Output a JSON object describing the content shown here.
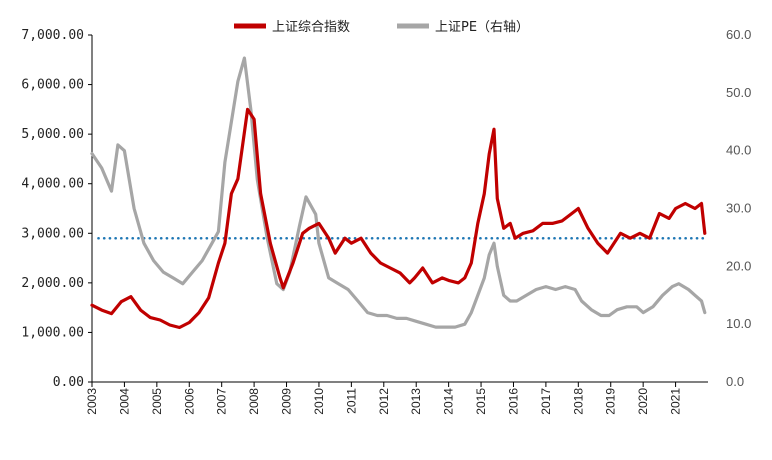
{
  "chart_data": {
    "type": "line",
    "legend_position": "top-center",
    "grid": false,
    "x_range": [
      2003,
      2022.0
    ],
    "x_ticks": [
      "2003",
      "2004",
      "2005",
      "2006",
      "2007",
      "2008",
      "2009",
      "2010",
      "2011",
      "2012",
      "2013",
      "2014",
      "2015",
      "2016",
      "2017",
      "2018",
      "2019",
      "2020",
      "2021"
    ],
    "y_left": {
      "range": [
        0,
        7000
      ],
      "ticks": [
        "0.00",
        "1,000.00",
        "2,000.00",
        "3,000.00",
        "4,000.00",
        "5,000.00",
        "6,000.00",
        "7,000.00"
      ]
    },
    "y_right": {
      "range": [
        0,
        60
      ],
      "ticks": [
        "0.0",
        "10.0",
        "20.0",
        "30.0",
        "40.0",
        "50.0",
        "60.0"
      ]
    },
    "reference_line": {
      "axis": "left",
      "value": 2900,
      "color": "#1f77b4"
    },
    "series": [
      {
        "name": "上证综合指数",
        "axis": "left",
        "color": "#c00000",
        "x": [
          2003.0,
          2003.3,
          2003.6,
          2003.9,
          2004.2,
          2004.5,
          2004.8,
          2005.1,
          2005.4,
          2005.7,
          2006.0,
          2006.3,
          2006.6,
          2006.9,
          2007.1,
          2007.3,
          2007.5,
          2007.8,
          2008.0,
          2008.2,
          2008.5,
          2008.8,
          2008.9,
          2009.2,
          2009.5,
          2009.7,
          2010.0,
          2010.3,
          2010.5,
          2010.8,
          2011.0,
          2011.3,
          2011.6,
          2011.9,
          2012.2,
          2012.5,
          2012.8,
          2012.95,
          2013.2,
          2013.5,
          2013.8,
          2014.0,
          2014.3,
          2014.5,
          2014.7,
          2014.9,
          2015.1,
          2015.25,
          2015.4,
          2015.5,
          2015.7,
          2015.9,
          2016.05,
          2016.3,
          2016.6,
          2016.9,
          2017.2,
          2017.5,
          2017.8,
          2018.0,
          2018.3,
          2018.6,
          2018.9,
          2019.0,
          2019.3,
          2019.6,
          2019.9,
          2020.2,
          2020.5,
          2020.8,
          2021.0,
          2021.3,
          2021.6,
          2021.8,
          2021.9
        ],
        "y": [
          1550,
          1450,
          1380,
          1620,
          1720,
          1450,
          1300,
          1250,
          1150,
          1100,
          1200,
          1400,
          1700,
          2400,
          2800,
          3800,
          4100,
          5500,
          5300,
          3800,
          2800,
          2100,
          1900,
          2400,
          3000,
          3100,
          3200,
          2900,
          2600,
          2900,
          2800,
          2900,
          2600,
          2400,
          2300,
          2200,
          2000,
          2100,
          2300,
          2000,
          2100,
          2050,
          2000,
          2100,
          2400,
          3200,
          3800,
          4600,
          5100,
          3700,
          3100,
          3200,
          2900,
          3000,
          3050,
          3200,
          3200,
          3250,
          3400,
          3500,
          3100,
          2800,
          2600,
          2700,
          3000,
          2900,
          3000,
          2900,
          3400,
          3300,
          3500,
          3600,
          3500,
          3600,
          3000
        ]
      },
      {
        "name": "上证PE（右轴）",
        "axis": "right",
        "color": "#a6a6a6",
        "x": [
          2003.0,
          2003.3,
          2003.6,
          2003.8,
          2004.0,
          2004.3,
          2004.6,
          2004.9,
          2005.2,
          2005.5,
          2005.8,
          2006.1,
          2006.4,
          2006.7,
          2006.9,
          2007.1,
          2007.3,
          2007.5,
          2007.7,
          2007.9,
          2008.1,
          2008.4,
          2008.7,
          2008.9,
          2009.1,
          2009.4,
          2009.6,
          2009.9,
          2010.0,
          2010.3,
          2010.6,
          2010.9,
          2011.2,
          2011.5,
          2011.8,
          2012.1,
          2012.4,
          2012.7,
          2013.0,
          2013.3,
          2013.6,
          2013.9,
          2014.2,
          2014.5,
          2014.7,
          2014.9,
          2015.1,
          2015.25,
          2015.4,
          2015.5,
          2015.7,
          2015.9,
          2016.1,
          2016.4,
          2016.7,
          2017.0,
          2017.3,
          2017.6,
          2017.9,
          2018.1,
          2018.4,
          2018.7,
          2018.95,
          2019.2,
          2019.5,
          2019.8,
          2020.0,
          2020.3,
          2020.6,
          2020.9,
          2021.1,
          2021.4,
          2021.6,
          2021.8,
          2021.9
        ],
        "y": [
          39.5,
          37,
          33,
          41,
          40,
          30,
          24,
          21,
          19,
          18,
          17,
          19,
          21,
          24,
          26,
          38,
          45,
          52,
          56,
          47,
          35,
          25,
          17,
          16,
          19,
          27,
          32,
          29,
          24,
          18,
          17,
          16,
          14,
          12,
          11.5,
          11.5,
          11,
          11,
          10.5,
          10,
          9.5,
          9.5,
          9.5,
          10,
          12,
          15,
          18,
          22,
          24,
          20,
          15,
          14,
          14,
          15,
          16,
          16.5,
          16,
          16.5,
          16,
          14,
          12.5,
          11.5,
          11.5,
          12.5,
          13,
          13,
          12,
          13,
          15,
          16.5,
          17,
          16,
          15,
          14,
          12
        ]
      }
    ]
  }
}
